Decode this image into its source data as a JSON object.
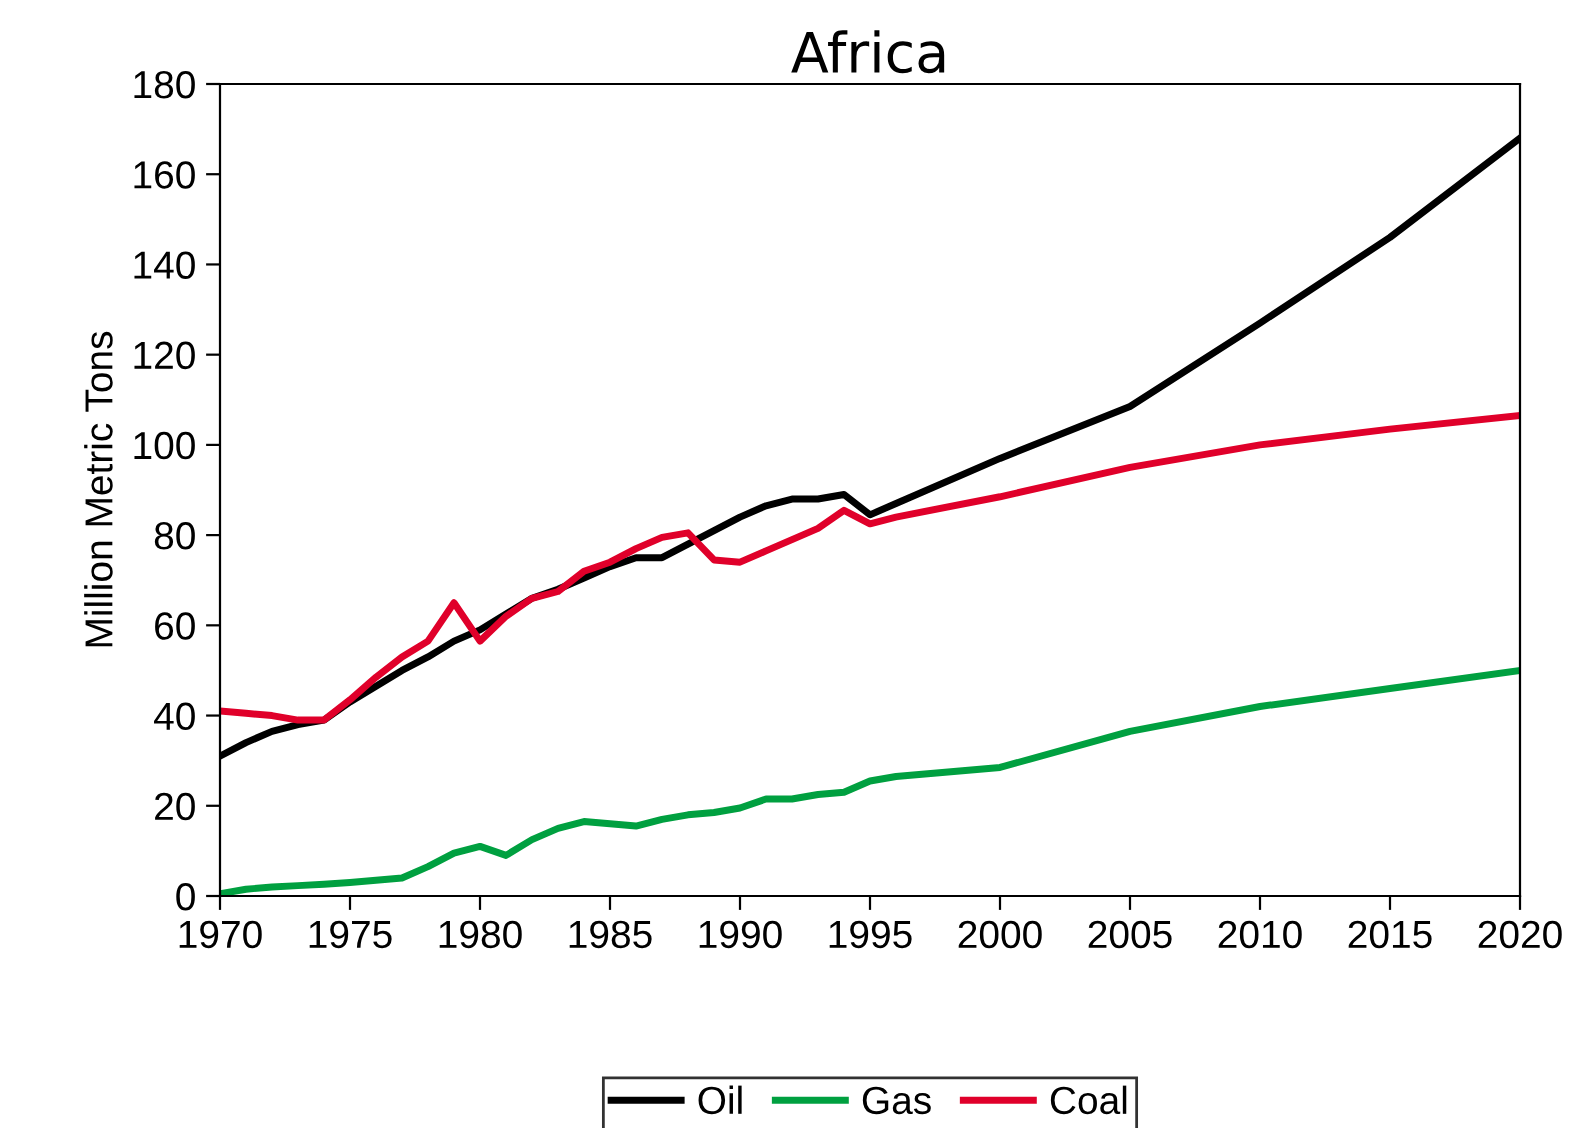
{
  "chart_data": {
    "type": "line",
    "title": "Africa",
    "ylabel": "Million Metric Tons",
    "x": [
      1970,
      1971,
      1972,
      1973,
      1974,
      1975,
      1976,
      1977,
      1978,
      1979,
      1980,
      1981,
      1982,
      1983,
      1984,
      1985,
      1986,
      1987,
      1988,
      1989,
      1990,
      1991,
      1992,
      1993,
      1994,
      1995,
      1996,
      2000,
      2005,
      2010,
      2015,
      2020
    ],
    "series": [
      {
        "name": "Oil",
        "color": "#000000",
        "values": [
          31,
          34,
          36.5,
          38,
          39,
          43,
          46.5,
          50,
          53,
          56.5,
          59,
          62.5,
          66,
          68,
          70.5,
          73,
          75,
          75,
          78,
          81,
          84,
          86.5,
          88,
          88,
          89,
          84.5,
          87,
          97,
          108.5,
          127,
          146,
          168
        ]
      },
      {
        "name": "Gas",
        "color": "#00a040",
        "values": [
          0.5,
          1.5,
          2,
          2.3,
          2.6,
          3,
          3.5,
          4,
          6.5,
          9.5,
          11,
          9,
          12.5,
          15,
          16.5,
          16,
          15.5,
          17,
          18,
          18.5,
          19.5,
          21.5,
          21.5,
          22.5,
          23,
          25.5,
          26.5,
          28.5,
          36.5,
          42,
          46,
          50
        ]
      },
      {
        "name": "Coal",
        "color": "#e0002a",
        "values": [
          41,
          40.5,
          40,
          39,
          39,
          43.5,
          48.5,
          53,
          56.5,
          65,
          56.5,
          62,
          66,
          67.5,
          72,
          74,
          77,
          79.5,
          80.5,
          74.5,
          74,
          76.5,
          79,
          81.5,
          85.5,
          82.5,
          84,
          88.5,
          95,
          100,
          103.5,
          106.5
        ]
      }
    ],
    "xlim": [
      1970,
      2020
    ],
    "xticks": [
      1970,
      1975,
      1980,
      1985,
      1990,
      1995,
      2000,
      2005,
      2010,
      2015,
      2020
    ],
    "ylim": [
      0,
      180
    ],
    "yticks": [
      0,
      20,
      40,
      60,
      80,
      100,
      120,
      140,
      160,
      180
    ],
    "grid": false,
    "legend": "bottom",
    "marker": "none",
    "line_style": "solid"
  }
}
